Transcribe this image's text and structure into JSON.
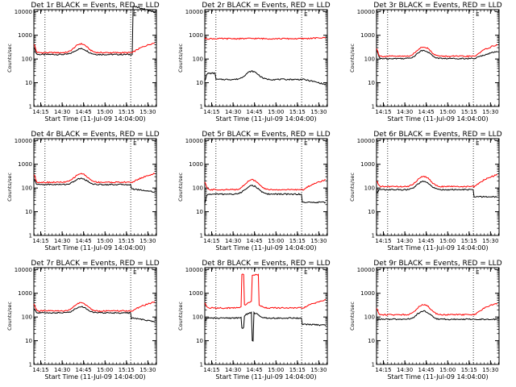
{
  "common": {
    "ylabel": "Counts/sec",
    "xlabel": "Start Time (11-Jul-09 14:04:00)",
    "y_ticks": [
      "1",
      "10",
      "100",
      "1000",
      "10000"
    ],
    "x_ticks": [
      "14:15",
      "14:30",
      "14:45",
      "15:00",
      "15:15",
      "15:30"
    ],
    "colors": {
      "events": "#000000",
      "lld": "#ff0000",
      "axes": "#000000",
      "background": "#ffffff"
    }
  },
  "chart_data": [
    {
      "type": "line",
      "title": "Det 1r BLACK = Events, RED = LLD",
      "yscale": "log",
      "ylim": [
        1,
        12000
      ],
      "xlim": [
        14.17,
        15.6
      ],
      "x_unit": "hour",
      "x_start": 14.17,
      "x_end": 15.58,
      "grid": false,
      "vlines": [
        14.3,
        15.3
      ],
      "mark_label": "E",
      "series": [
        {
          "name": "Events",
          "color": "#000000",
          "step": [
            15.32,
            108
          ],
          "shape": {
            "base": 155,
            "bump": 1.75,
            "rise": 0.55,
            "spike": 1.9
          }
        },
        {
          "name": "LLD",
          "color": "#ff0000",
          "step": [
            15.32,
            1.0
          ],
          "shape": {
            "base": 185,
            "bump": 2.35,
            "rise": 2.6,
            "spike": 2.3
          }
        }
      ]
    },
    {
      "type": "line",
      "title": "Det 2r BLACK = Events, RED = LLD",
      "yscale": "log",
      "ylim": [
        1,
        12000
      ],
      "xlim": [
        14.17,
        15.6
      ],
      "x_unit": "hour",
      "x_start": 14.17,
      "x_end": 15.58,
      "grid": false,
      "vlines": [
        14.3,
        15.3
      ],
      "mark_label": "E",
      "series": [
        {
          "name": "Events",
          "color": "#000000",
          "step": [
            14.3,
            0.55
          ],
          "shape": {
            "base": 25,
            "bump": 2.2,
            "rise": 0.6,
            "spike": 0.5
          }
        },
        {
          "name": "LLD",
          "color": "#ff0000",
          "step": [
            14.3,
            1.0
          ],
          "shape": {
            "base": 720,
            "bump": 1.02,
            "rise": 1.1,
            "spike": 1.0
          }
        }
      ]
    },
    {
      "type": "line",
      "title": "Det 3r BLACK = Events, RED = LLD",
      "yscale": "log",
      "ylim": [
        1,
        12000
      ],
      "xlim": [
        14.17,
        15.6
      ],
      "x_unit": "hour",
      "x_start": 14.17,
      "x_end": 15.58,
      "grid": false,
      "vlines": [
        14.3,
        15.3
      ],
      "mark_label": "E",
      "series": [
        {
          "name": "Events",
          "color": "#000000",
          "step": [
            15.3,
            1.0
          ],
          "shape": {
            "base": 105,
            "bump": 2.2,
            "rise": 2.0,
            "spike": 2.3
          }
        },
        {
          "name": "LLD",
          "color": "#ff0000",
          "step": [
            15.3,
            1.0
          ],
          "shape": {
            "base": 130,
            "bump": 2.5,
            "rise": 3.1,
            "spike": 2.1
          }
        }
      ]
    },
    {
      "type": "line",
      "title": "Det 4r BLACK = Events, RED = LLD",
      "yscale": "log",
      "ylim": [
        1,
        12000
      ],
      "xlim": [
        14.17,
        15.6
      ],
      "x_unit": "hour",
      "x_start": 14.17,
      "x_end": 15.58,
      "grid": false,
      "vlines": [
        14.3,
        15.3
      ],
      "mark_label": "E",
      "series": [
        {
          "name": "Events",
          "color": "#000000",
          "step": [
            15.3,
            0.65
          ],
          "shape": {
            "base": 140,
            "bump": 1.8,
            "rise": 0.75,
            "spike": 1.7
          }
        },
        {
          "name": "LLD",
          "color": "#ff0000",
          "step": [
            15.3,
            1.0
          ],
          "shape": {
            "base": 175,
            "bump": 2.3,
            "rise": 2.3,
            "spike": 2.1
          }
        }
      ]
    },
    {
      "type": "line",
      "title": "Det 5r BLACK = Events, RED = LLD",
      "yscale": "log",
      "ylim": [
        1,
        12000
      ],
      "xlim": [
        14.17,
        15.6
      ],
      "x_unit": "hour",
      "x_start": 14.17,
      "x_end": 15.58,
      "grid": false,
      "vlines": [
        14.3,
        15.3
      ],
      "mark_label": "E",
      "series": [
        {
          "name": "Events",
          "color": "#000000",
          "step": [
            15.3,
            0.45
          ],
          "shape": {
            "base": 55,
            "bump": 2.3,
            "rise": 1.0,
            "spike": 0.4
          }
        },
        {
          "name": "LLD",
          "color": "#ff0000",
          "step": [
            15.3,
            1.0
          ],
          "shape": {
            "base": 85,
            "bump": 2.6,
            "rise": 2.6,
            "spike": 2.0
          }
        }
      ]
    },
    {
      "type": "line",
      "title": "Det 6r BLACK = Events, RED = LLD",
      "yscale": "log",
      "ylim": [
        1,
        12000
      ],
      "xlim": [
        14.17,
        15.6
      ],
      "x_unit": "hour",
      "x_start": 14.17,
      "x_end": 15.58,
      "grid": false,
      "vlines": [
        14.3,
        15.3
      ],
      "mark_label": "E",
      "series": [
        {
          "name": "Events",
          "color": "#000000",
          "step": [
            15.3,
            0.5
          ],
          "shape": {
            "base": 85,
            "bump": 2.2,
            "rise": 1.0,
            "spike": 0.7
          }
        },
        {
          "name": "LLD",
          "color": "#ff0000",
          "step": [
            15.3,
            1.0
          ],
          "shape": {
            "base": 115,
            "bump": 2.7,
            "rise": 3.2,
            "spike": 1.7
          }
        }
      ]
    },
    {
      "type": "line",
      "title": "Det 7r BLACK = Events, RED = LLD",
      "yscale": "log",
      "ylim": [
        1,
        12000
      ],
      "xlim": [
        14.17,
        15.6
      ],
      "x_unit": "hour",
      "x_start": 14.17,
      "x_end": 15.58,
      "grid": false,
      "vlines": [
        14.3,
        15.3
      ],
      "mark_label": "E",
      "series": [
        {
          "name": "Events",
          "color": "#000000",
          "step": [
            15.3,
            0.6
          ],
          "shape": {
            "base": 150,
            "bump": 1.8,
            "rise": 0.7,
            "spike": 1.5
          }
        },
        {
          "name": "LLD",
          "color": "#ff0000",
          "step": [
            15.3,
            1.0
          ],
          "shape": {
            "base": 180,
            "bump": 2.2,
            "rise": 2.4,
            "spike": 2.0
          }
        }
      ]
    },
    {
      "type": "line",
      "title": "Det 8r BLACK = Events, RED = LLD",
      "yscale": "log",
      "ylim": [
        1,
        12000
      ],
      "xlim": [
        14.17,
        15.6
      ],
      "x_unit": "hour",
      "x_start": 14.17,
      "x_end": 15.58,
      "grid": false,
      "vlines": [
        14.3,
        15.3
      ],
      "mark_label": "E",
      "series": [
        {
          "name": "Events",
          "color": "#000000",
          "step": [
            15.3,
            0.55
          ],
          "shape": {
            "base": 90,
            "bump": 1.7,
            "rise": 0.9,
            "spike": 0.8
          }
        },
        {
          "name": "LLD",
          "color": "#ff0000",
          "step": [
            15.3,
            1.0
          ],
          "shape": {
            "base": 240,
            "bump": 1.8,
            "rise": 2.2,
            "spike": 1.6
          }
        }
      ],
      "glitches": [
        {
          "series": "LLD",
          "x0": 14.6,
          "x1": 14.63,
          "value": 6500
        },
        {
          "series": "LLD",
          "x0": 14.72,
          "x1": 14.8,
          "value": 6000
        },
        {
          "series": "Events",
          "x0": 14.6,
          "x1": 14.63,
          "value": 35
        },
        {
          "series": "Events",
          "x0": 14.72,
          "x1": 14.74,
          "value": 10
        }
      ]
    },
    {
      "type": "line",
      "title": "Det 9r BLACK = Events, RED = LLD",
      "yscale": "log",
      "ylim": [
        1,
        12000
      ],
      "xlim": [
        14.17,
        15.6
      ],
      "x_unit": "hour",
      "x_start": 14.17,
      "x_end": 15.58,
      "grid": false,
      "vlines": [
        14.3,
        15.3
      ],
      "mark_label": "E",
      "series": [
        {
          "name": "Events",
          "color": "#000000",
          "step": [
            15.3,
            1.0
          ],
          "shape": {
            "base": 80,
            "bump": 2.2,
            "rise": 1.0,
            "spike": 1.0
          }
        },
        {
          "name": "LLD",
          "color": "#ff0000",
          "step": [
            15.3,
            1.0
          ],
          "shape": {
            "base": 125,
            "bump": 2.7,
            "rise": 3.1,
            "spike": 1.8
          }
        }
      ]
    }
  ]
}
